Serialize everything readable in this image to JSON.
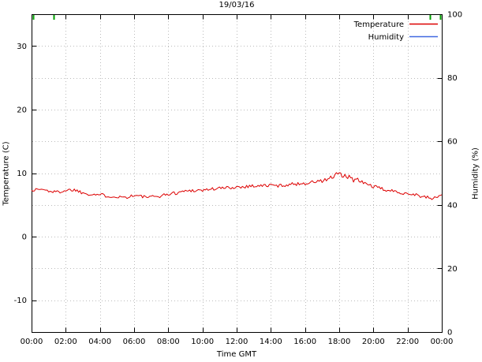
{
  "chart_data": {
    "type": "line",
    "title": "19/03/16",
    "xlabel": "Time GMT",
    "ylabel_left": "Temperature (C)",
    "ylabel_right": "Humidity (%)",
    "x_range_hours": [
      0,
      24
    ],
    "x_tick_hours": [
      0,
      2,
      4,
      6,
      8,
      10,
      12,
      14,
      16,
      18,
      20,
      22,
      24
    ],
    "x_tick_labels": [
      "00:00",
      "02:00",
      "04:00",
      "06:00",
      "08:00",
      "10:00",
      "12:00",
      "14:00",
      "16:00",
      "18:00",
      "20:00",
      "22:00",
      "00:00"
    ],
    "y_left_range": [
      -15,
      35
    ],
    "y_left_ticks": [
      -10,
      0,
      10,
      20,
      30
    ],
    "y_right_range": [
      0,
      100
    ],
    "y_right_ticks": [
      0,
      20,
      40,
      60,
      80,
      100
    ],
    "grid": true,
    "legend": {
      "position": "top-right",
      "entries": [
        {
          "label": "Temperature",
          "color": "#dd0000"
        },
        {
          "label": "Humidity",
          "color": "#4169e1"
        }
      ]
    },
    "colors": {
      "temperature": "#dd0000",
      "humidity": "#4169e1",
      "grid": "#bbbbbb",
      "axis": "#000000"
    },
    "series": [
      {
        "name": "Temperature",
        "axis": "left",
        "units": "C",
        "x_hours": [
          0,
          0.5,
          1,
          1.5,
          2,
          2.5,
          3,
          3.5,
          4,
          4.5,
          5,
          5.5,
          6,
          6.5,
          7,
          7.5,
          8,
          8.5,
          9,
          9.5,
          10,
          10.5,
          11,
          11.5,
          12,
          12.5,
          13,
          13.5,
          14,
          14.5,
          15,
          15.5,
          16,
          16.5,
          17,
          17.5,
          18,
          18.5,
          19,
          19.5,
          20,
          20.5,
          21,
          21.5,
          22,
          22.5,
          23,
          23.5,
          24
        ],
        "values": [
          7.3,
          7.5,
          7.2,
          7.0,
          7.3,
          7.4,
          6.9,
          6.7,
          6.6,
          6.4,
          6.3,
          6.2,
          6.5,
          6.3,
          6.2,
          6.4,
          6.7,
          6.9,
          7.2,
          7.3,
          7.3,
          7.5,
          7.6,
          7.7,
          7.8,
          7.9,
          8.0,
          8.0,
          8.1,
          8.0,
          8.2,
          8.3,
          8.4,
          8.6,
          8.8,
          9.2,
          9.8,
          9.3,
          8.9,
          8.4,
          7.9,
          7.5,
          7.2,
          7.0,
          6.8,
          6.6,
          6.2,
          6.0,
          6.6
        ]
      },
      {
        "name": "Humidity",
        "axis": "right",
        "units": "%",
        "x_hours": [],
        "values": [],
        "note": "no humidity trace visible inside the plotted axis range"
      }
    ],
    "noise": {
      "default": 0.27,
      "regions": [
        {
          "from": 17.0,
          "to": 19.2,
          "amplitude": 0.5
        }
      ],
      "seed": 1337,
      "subdivisions": 6
    },
    "top_marks": {
      "hours": [
        0.1,
        1.3,
        23.3,
        23.9
      ],
      "color": "#00a000"
    }
  }
}
